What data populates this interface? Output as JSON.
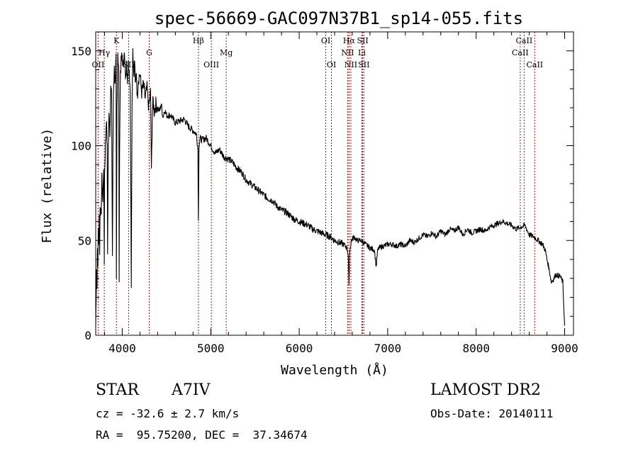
{
  "chart_data": {
    "type": "line",
    "title": "spec-56669-GAC097N37B1_sp14-055.fits",
    "xlabel": "Wavelength (Å)",
    "ylabel": "Flux (relative)",
    "xlim": [
      3700,
      9100
    ],
    "ylim": [
      0,
      160
    ],
    "xticks": [
      4000,
      5000,
      6000,
      7000,
      8000,
      9000
    ],
    "yticks": [
      0,
      50,
      100,
      150
    ],
    "grid": false,
    "legend": "none",
    "series": [
      {
        "x": [
          3700,
          3705,
          3710,
          3715,
          3720,
          3725,
          3730,
          3735,
          3740,
          3745,
          3750,
          3760,
          3770,
          3780,
          3790,
          3797,
          3800,
          3810,
          3820,
          3830,
          3835,
          3840,
          3850,
          3860,
          3870,
          3880,
          3889,
          3895,
          3900,
          3910,
          3920,
          3930,
          3934,
          3940,
          3950,
          3960,
          3965,
          3970,
          3980,
          3990,
          4000,
          4010,
          4020,
          4030,
          4040,
          4050,
          4060,
          4070,
          4080,
          4090,
          4102,
          4110,
          4120,
          4130,
          4140,
          4150,
          4160,
          4170,
          4180,
          4200,
          4220,
          4240,
          4260,
          4280,
          4300,
          4320,
          4330,
          4340,
          4350,
          4360,
          4380,
          4400,
          4420,
          4440,
          4460,
          4480,
          4500,
          4550,
          4600,
          4650,
          4700,
          4750,
          4800,
          4840,
          4855,
          4861,
          4867,
          4880,
          4900,
          4950,
          5000,
          5050,
          5100,
          5150,
          5200,
          5250,
          5300,
          5350,
          5400,
          5450,
          5500,
          5550,
          5600,
          5650,
          5700,
          5750,
          5800,
          5850,
          5900,
          5950,
          6000,
          6050,
          6100,
          6150,
          6200,
          6250,
          6300,
          6350,
          6400,
          6450,
          6500,
          6540,
          6555,
          6563,
          6570,
          6590,
          6620,
          6650,
          6700,
          6750,
          6800,
          6850,
          6870,
          6885,
          6900,
          6950,
          7000,
          7050,
          7100,
          7150,
          7200,
          7250,
          7300,
          7350,
          7400,
          7450,
          7500,
          7550,
          7600,
          7650,
          7700,
          7750,
          7800,
          7850,
          7900,
          7950,
          8000,
          8050,
          8100,
          8150,
          8200,
          8250,
          8300,
          8350,
          8400,
          8450,
          8500,
          8550,
          8600,
          8650,
          8700,
          8750,
          8780,
          8800,
          8820,
          8850,
          8880,
          8900,
          8950,
          8980,
          8990,
          9000
        ],
        "y": [
          5,
          20,
          35,
          28,
          45,
          38,
          55,
          48,
          62,
          42,
          70,
          60,
          82,
          70,
          90,
          38,
          85,
          100,
          115,
          98,
          45,
          88,
          120,
          108,
          130,
          125,
          42,
          95,
          128,
          140,
          132,
          145,
          28,
          120,
          150,
          140,
          30,
          100,
          140,
          145,
          148,
          140,
          150,
          142,
          135,
          148,
          130,
          145,
          140,
          130,
          28,
          120,
          152,
          138,
          145,
          130,
          140,
          125,
          135,
          138,
          128,
          132,
          125,
          130,
          120,
          128,
          85,
          118,
          124,
          118,
          122,
          120,
          118,
          122,
          115,
          119,
          116,
          116,
          112,
          113,
          114,
          110,
          108,
          106,
          98,
          60,
          100,
          104,
          103,
          104,
          100,
          96,
          98,
          94,
          93,
          91,
          88,
          86,
          82,
          80,
          78,
          76,
          74,
          72,
          71,
          68,
          66,
          65,
          63,
          61,
          60,
          59,
          58,
          56,
          55,
          54,
          53,
          52,
          50,
          49,
          48,
          46,
          42,
          25,
          44,
          50,
          52,
          50,
          50,
          48,
          46,
          45,
          36,
          44,
          46,
          47,
          48,
          48,
          47,
          48,
          47,
          50,
          49,
          51,
          53,
          52,
          54,
          52,
          55,
          53,
          56,
          55,
          57,
          53,
          56,
          54,
          55,
          56,
          55,
          57,
          58,
          59,
          60,
          59,
          58,
          56,
          57,
          58,
          53,
          52,
          50,
          48,
          45,
          40,
          36,
          28,
          30,
          32,
          31,
          28,
          15,
          5
        ]
      }
    ],
    "lines": [
      {
        "label": "OII",
        "x": 3727,
        "row": 3
      },
      {
        "label": "Hγ",
        "x": 3797,
        "row": 2
      },
      {
        "label": "K",
        "x": 3934,
        "row": 1
      },
      {
        "label": "SII",
        "x": 4072,
        "row": 3
      },
      {
        "label": "G",
        "x": 4305,
        "row": 2
      },
      {
        "label": "Hβ",
        "x": 4861,
        "row": 1
      },
      {
        "label": "OIII",
        "x": 5007,
        "row": 3
      },
      {
        "label": "Mg",
        "x": 5175,
        "row": 2
      },
      {
        "label": "OI",
        "x": 6300,
        "row": 1
      },
      {
        "label": "OI",
        "x": 6364,
        "row": 3
      },
      {
        "label": "Hα",
        "x": 6563,
        "row": 1
      },
      {
        "label": "NII",
        "x": 6548,
        "row": 2
      },
      {
        "label": "NII",
        "x": 6584,
        "row": 3
      },
      {
        "label": "SII",
        "x": 6717,
        "row": 1
      },
      {
        "label": "Li",
        "x": 6708,
        "row": 2
      },
      {
        "label": "SII",
        "x": 6731,
        "row": 3
      },
      {
        "label": "CaII",
        "x": 8498,
        "row": 2
      },
      {
        "label": "CaII",
        "x": 8542,
        "row": 1
      },
      {
        "label": "CaII",
        "x": 8662,
        "row": 3
      }
    ]
  },
  "info": {
    "object_class": "STAR",
    "subclass": "A7IV",
    "survey": "LAMOST DR2",
    "cz": "cz = -32.6 ± 2.7 km/s",
    "obs_date": "Obs-Date: 20140111",
    "coords": "RA =  95.75200, DEC =  37.34674"
  }
}
